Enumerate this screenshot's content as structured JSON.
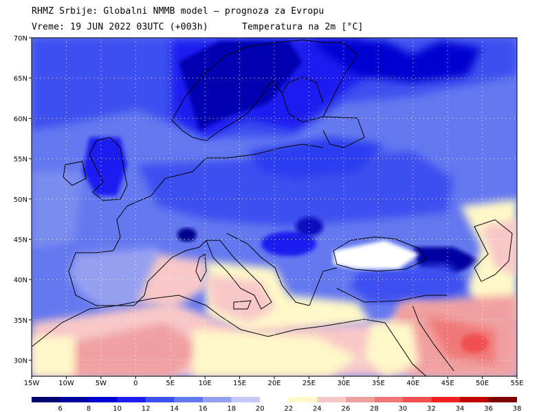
{
  "header": {
    "line1": "RHMZ Srbije: Globalni NMMB model — prognoza za Evropu",
    "line2": "Vreme: 19 JUN 2022 03UTC (+003h)",
    "line3": "Temperatura na 2m [°C]"
  },
  "map": {
    "lon_range": [
      -15,
      55
    ],
    "lat_range": [
      28,
      70
    ],
    "x_tick_labels": [
      "15W",
      "10W",
      "5W",
      "0",
      "5E",
      "10E",
      "15E",
      "20E",
      "25E",
      "30E",
      "35E",
      "40E",
      "45E",
      "50E",
      "55E"
    ],
    "y_tick_labels": [
      "70N",
      "65N",
      "60N",
      "55N",
      "50N",
      "45N",
      "40N",
      "35N",
      "30N"
    ],
    "grid": "dotted"
  },
  "legend": {
    "labels": [
      "6",
      "8",
      "10",
      "12",
      "14",
      "16",
      "18",
      "20",
      "22",
      "24",
      "26",
      "28",
      "30",
      "32",
      "34",
      "36",
      "38"
    ],
    "colors": [
      "#000070",
      "#0000a0",
      "#0000d0",
      "#1e1ef0",
      "#3c50f0",
      "#6478f0",
      "#96a0f0",
      "#c8c8f8",
      "#ffffff",
      "#fff8c8",
      "#f8c8c8",
      "#f0a0a0",
      "#f07878",
      "#f05050",
      "#f02020",
      "#c00000",
      "#800000"
    ]
  },
  "colors": {
    "sea": "#6478f0",
    "land_north": "#3c50f0",
    "coast": "#000000"
  }
}
